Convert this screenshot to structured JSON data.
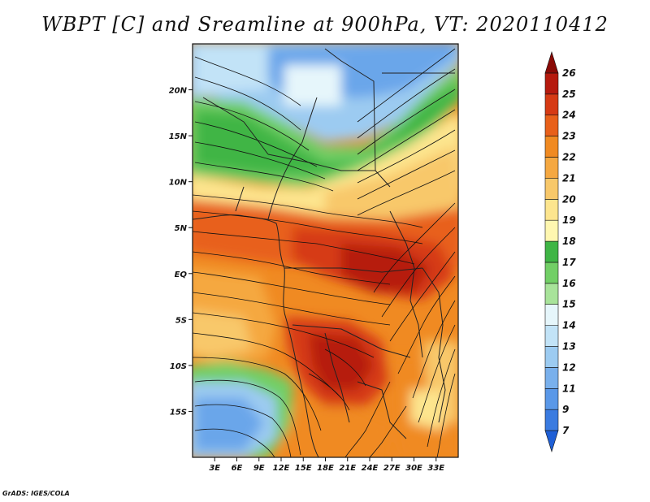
{
  "title": "WBPT [C] and Sreamline at 900hPa, VT: 2020110412",
  "credit": "GrADS: IGES/COLA",
  "map": {
    "lon_range": [
      0,
      36
    ],
    "lat_range": [
      -20,
      25
    ],
    "lon_ticks": [
      {
        "lon": 3,
        "label": "3E"
      },
      {
        "lon": 6,
        "label": "6E"
      },
      {
        "lon": 9,
        "label": "9E"
      },
      {
        "lon": 12,
        "label": "12E"
      },
      {
        "lon": 15,
        "label": "15E"
      },
      {
        "lon": 18,
        "label": "18E"
      },
      {
        "lon": 21,
        "label": "21E"
      },
      {
        "lon": 24,
        "label": "24E"
      },
      {
        "lon": 27,
        "label": "27E"
      },
      {
        "lon": 30,
        "label": "30E"
      },
      {
        "lon": 33,
        "label": "33E"
      }
    ],
    "lat_ticks": [
      {
        "lat": 20,
        "label": "20N"
      },
      {
        "lat": 15,
        "label": "15N"
      },
      {
        "lat": 10,
        "label": "10N"
      },
      {
        "lat": 5,
        "label": "5N"
      },
      {
        "lat": 0,
        "label": "EQ"
      },
      {
        "lat": -5,
        "label": "5S"
      },
      {
        "lat": -10,
        "label": "10S"
      },
      {
        "lat": -15,
        "label": "15S"
      }
    ]
  },
  "colorbar": {
    "levels": [
      "7",
      "9",
      "11",
      "12",
      "13",
      "14",
      "15",
      "16",
      "17",
      "18",
      "19",
      "20",
      "21",
      "22",
      "23",
      "24",
      "25",
      "26"
    ],
    "colors": [
      "#1f5fd6",
      "#3a7be0",
      "#5a98e8",
      "#79b0ec",
      "#9ccbf1",
      "#c2e3f7",
      "#e6f6fb",
      "#a8e39a",
      "#72cf66",
      "#3fb545",
      "#fff7b0",
      "#fde58e",
      "#f8c86a",
      "#f5a841",
      "#f08a22",
      "#e8601a",
      "#d63a14",
      "#b61a0e",
      "#8a0a06"
    ]
  }
}
